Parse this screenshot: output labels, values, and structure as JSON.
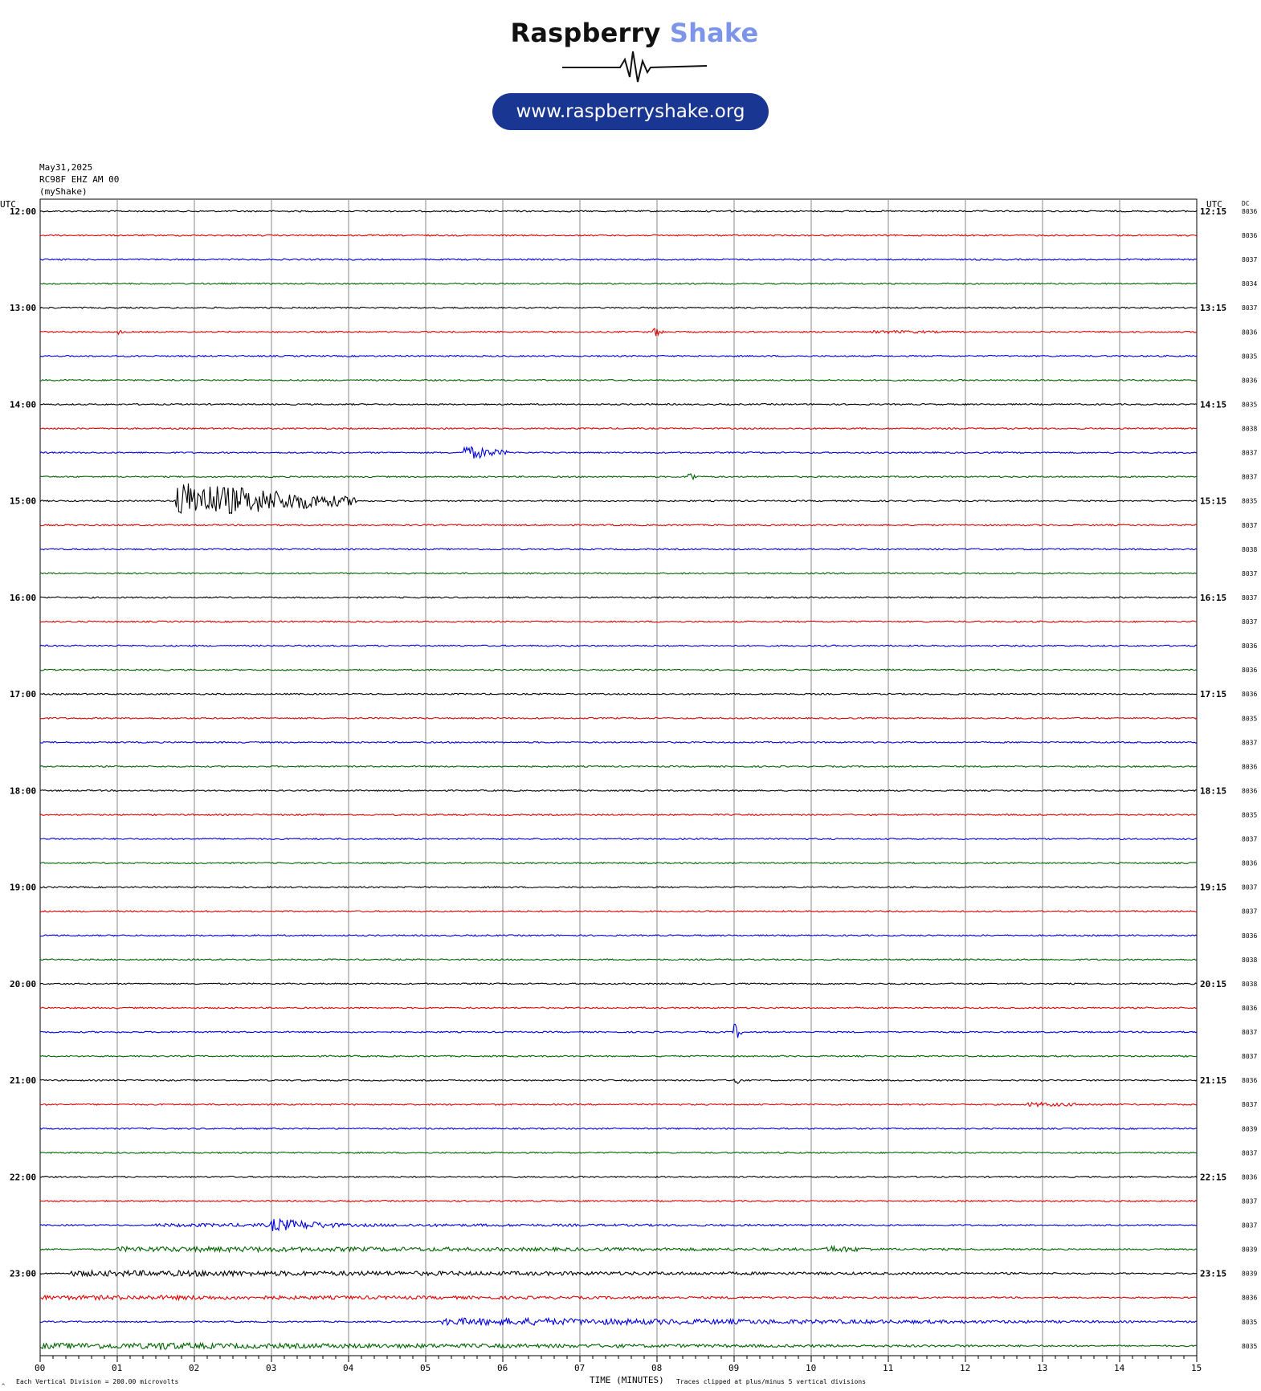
{
  "logo": {
    "brand_first": "Raspberry",
    "brand_second": "Shake",
    "url": "www.raspberryshake.org",
    "colors": {
      "dark": "#111111",
      "accent": "#7d95e8",
      "pill": "#1a3693"
    }
  },
  "header": {
    "date": "May31,2025",
    "station": "RC98F EHZ AM 00",
    "network": "(myShake)"
  },
  "axis_labels": {
    "left_utc": "UTC",
    "right_utc": "UTC",
    "right_dc": "DC",
    "x_title": "TIME (MINUTES)",
    "footnote_left": "Each Vertical Division =  200.00 microvolts",
    "footnote_right": "Traces clipped at plus/minus 5 vertical divisions",
    "corner_mark": "^"
  },
  "chart_data": {
    "type": "line",
    "title": "",
    "xlabel": "TIME (MINUTES)",
    "ylabel": "UTC",
    "xlim": [
      0,
      15
    ],
    "x_ticks": [
      "00",
      "01",
      "02",
      "03",
      "04",
      "05",
      "06",
      "07",
      "08",
      "09",
      "10",
      "11",
      "12",
      "13",
      "14",
      "15"
    ],
    "left_hour_labels": [
      "12:00",
      "13:00",
      "14:00",
      "15:00",
      "16:00",
      "17:00",
      "18:00",
      "19:00",
      "20:00",
      "21:00",
      "22:00",
      "23:00"
    ],
    "right_hour_labels": [
      "12:15",
      "13:15",
      "14:15",
      "15:15",
      "16:15",
      "17:15",
      "18:15",
      "19:15",
      "20:15",
      "21:15",
      "22:15",
      "23:15"
    ],
    "trace_colors": [
      "#000000",
      "#e00000",
      "#0000e0",
      "#006400"
    ],
    "dc_values": [
      "8036",
      "8036",
      "8037",
      "8034",
      "8037",
      "8036",
      "8035",
      "8036",
      "8035",
      "8038",
      "8037",
      "8037",
      "8035",
      "8037",
      "8038",
      "8037",
      "8037",
      "8037",
      "8036",
      "8036",
      "8036",
      "8035",
      "8037",
      "8036",
      "8036",
      "8035",
      "8037",
      "8036",
      "8037",
      "8037",
      "8036",
      "8038",
      "8038",
      "8036",
      "8037",
      "8037",
      "8036",
      "8037",
      "8039",
      "8037",
      "8036",
      "8037",
      "8037",
      "8039",
      "8039",
      "8036",
      "8035",
      "8035"
    ],
    "events": [
      {
        "trace": 0,
        "start_min": 8.9,
        "end_min": 9.0,
        "amplitude": 0.15
      },
      {
        "trace": 5,
        "start_min": 1.0,
        "end_min": 1.1,
        "amplitude": 0.2
      },
      {
        "trace": 5,
        "start_min": 7.95,
        "end_min": 8.1,
        "amplitude": 0.35
      },
      {
        "trace": 5,
        "start_min": 10.8,
        "end_min": 12.5,
        "amplitude": 0.12
      },
      {
        "trace": 10,
        "start_min": 5.5,
        "end_min": 6.1,
        "amplitude": 0.5
      },
      {
        "trace": 11,
        "start_min": 8.4,
        "end_min": 8.5,
        "amplitude": 0.6
      },
      {
        "trace": 12,
        "start_min": 1.75,
        "end_min": 4.1,
        "amplitude": 1.3
      },
      {
        "trace": 34,
        "start_min": 9.0,
        "end_min": 9.1,
        "amplitude": 0.7
      },
      {
        "trace": 36,
        "start_min": 9.0,
        "end_min": 9.1,
        "amplitude": 0.55
      },
      {
        "trace": 37,
        "start_min": 12.8,
        "end_min": 14.3,
        "amplitude": 0.15
      },
      {
        "trace": 42,
        "start_min": 3.0,
        "end_min": 4.0,
        "amplitude": 0.45
      },
      {
        "trace": 42,
        "start_min": 1.5,
        "end_min": 15.0,
        "amplitude": 0.12
      },
      {
        "trace": 43,
        "start_min": 1.0,
        "end_min": 15.0,
        "amplitude": 0.18
      },
      {
        "trace": 43,
        "start_min": 10.2,
        "end_min": 11.0,
        "amplitude": 0.25
      },
      {
        "trace": 44,
        "start_min": 0.4,
        "end_min": 15.0,
        "amplitude": 0.2
      },
      {
        "trace": 45,
        "start_min": 0.0,
        "end_min": 15.0,
        "amplitude": 0.15
      },
      {
        "trace": 46,
        "start_min": 5.2,
        "end_min": 15.0,
        "amplitude": 0.25
      },
      {
        "trace": 47,
        "start_min": 0.0,
        "end_min": 15.0,
        "amplitude": 0.2
      },
      {
        "trace": 47,
        "start_min": 1.5,
        "end_min": 2.4,
        "amplitude": 0.3
      }
    ]
  }
}
